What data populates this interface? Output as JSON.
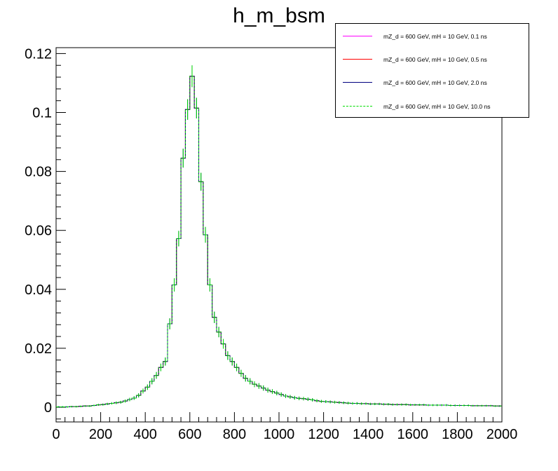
{
  "chart_data": {
    "type": "line",
    "title": "h_m_bsm",
    "xlabel": "",
    "ylabel": "",
    "xlim": [
      0,
      2000
    ],
    "ylim": [
      -0.005,
      0.122
    ],
    "x_ticks": [
      "0",
      "200",
      "400",
      "600",
      "800",
      "1000",
      "1200",
      "1400",
      "1600",
      "1800",
      "2000"
    ],
    "y_ticks": [
      "0",
      "0.02",
      "0.04",
      "0.06",
      "0.08",
      "0.1",
      "0.12"
    ],
    "grid": false,
    "legend_position": "top-right",
    "bin_width": 20,
    "bin_centers": [
      10,
      30,
      50,
      70,
      90,
      110,
      130,
      150,
      170,
      190,
      210,
      230,
      250,
      270,
      290,
      310,
      330,
      350,
      370,
      390,
      410,
      430,
      450,
      470,
      490,
      510,
      530,
      550,
      570,
      590,
      610,
      630,
      650,
      670,
      690,
      710,
      730,
      750,
      770,
      790,
      810,
      830,
      850,
      870,
      890,
      910,
      930,
      950,
      970,
      990,
      1010,
      1030,
      1050,
      1070,
      1090,
      1110,
      1130,
      1150,
      1170,
      1190,
      1210,
      1230,
      1250,
      1270,
      1290,
      1310,
      1330,
      1350,
      1370,
      1390,
      1410,
      1430,
      1450,
      1470,
      1490,
      1510,
      1530,
      1550,
      1570,
      1590,
      1610,
      1630,
      1650,
      1670,
      1690,
      1710,
      1730,
      1750,
      1770,
      1790,
      1810,
      1830,
      1850,
      1870,
      1890,
      1910,
      1930,
      1950,
      1970,
      1990
    ],
    "series": [
      {
        "name": "mZ_d = 600 GeV, mH = 10 GeV, 0.1 ns",
        "color": "#ff00ff",
        "dash": "solid",
        "values": [
          0.0001,
          0.0001,
          0.0001,
          0.0002,
          0.0002,
          0.0003,
          0.0004,
          0.0004,
          0.0006,
          0.0008,
          0.0009,
          0.0011,
          0.0013,
          0.0015,
          0.0017,
          0.0021,
          0.0026,
          0.0031,
          0.004,
          0.0055,
          0.0068,
          0.0088,
          0.0108,
          0.0135,
          0.0155,
          0.0283,
          0.0415,
          0.0572,
          0.0845,
          0.101,
          0.1123,
          0.1015,
          0.0765,
          0.0585,
          0.0415,
          0.0305,
          0.0255,
          0.0215,
          0.0175,
          0.0155,
          0.0135,
          0.0115,
          0.0098,
          0.0088,
          0.0078,
          0.0072,
          0.0065,
          0.0058,
          0.0053,
          0.0048,
          0.0043,
          0.0038,
          0.0035,
          0.0032,
          0.003,
          0.0029,
          0.0027,
          0.0025,
          0.0022,
          0.002,
          0.0019,
          0.0018,
          0.0017,
          0.0016,
          0.0015,
          0.0014,
          0.0013,
          0.0013,
          0.0012,
          0.0012,
          0.0011,
          0.0011,
          0.0011,
          0.001,
          0.001,
          0.0009,
          0.0009,
          0.0009,
          0.0009,
          0.0008,
          0.0008,
          0.0008,
          0.0008,
          0.0007,
          0.0007,
          0.0007,
          0.0007,
          0.0007,
          0.0006,
          0.0006,
          0.0006,
          0.0006,
          0.0006,
          0.0005,
          0.0005,
          0.0005,
          0.0005,
          0.0005,
          0.0004,
          0.0004
        ]
      },
      {
        "name": "mZ_d = 600 GeV, mH = 10 GeV, 0.5 ns",
        "color": "#ff0000",
        "dash": "solid",
        "values": [
          0.0001,
          0.0001,
          0.0001,
          0.0002,
          0.0002,
          0.0003,
          0.0004,
          0.0004,
          0.0006,
          0.0008,
          0.0009,
          0.0011,
          0.0013,
          0.0015,
          0.0017,
          0.0021,
          0.0026,
          0.0031,
          0.004,
          0.0055,
          0.0068,
          0.0088,
          0.0108,
          0.0135,
          0.0155,
          0.0283,
          0.0415,
          0.0572,
          0.0845,
          0.101,
          0.1123,
          0.1015,
          0.0765,
          0.0585,
          0.0415,
          0.0305,
          0.0255,
          0.0215,
          0.0175,
          0.0155,
          0.0135,
          0.0115,
          0.0098,
          0.0088,
          0.0078,
          0.0072,
          0.0065,
          0.0058,
          0.0053,
          0.0048,
          0.0043,
          0.0038,
          0.0035,
          0.0032,
          0.003,
          0.0029,
          0.0027,
          0.0025,
          0.0022,
          0.002,
          0.0019,
          0.0018,
          0.0017,
          0.0016,
          0.0015,
          0.0014,
          0.0013,
          0.0013,
          0.0012,
          0.0012,
          0.0011,
          0.0011,
          0.0011,
          0.001,
          0.001,
          0.0009,
          0.0009,
          0.0009,
          0.0009,
          0.0008,
          0.0008,
          0.0008,
          0.0008,
          0.0007,
          0.0007,
          0.0007,
          0.0007,
          0.0007,
          0.0006,
          0.0006,
          0.0006,
          0.0006,
          0.0006,
          0.0005,
          0.0005,
          0.0005,
          0.0005,
          0.0005,
          0.0004,
          0.0004
        ]
      },
      {
        "name": "mZ_d = 600 GeV, mH = 10 GeV, 2.0 ns",
        "color": "#000080",
        "dash": "solid",
        "values": [
          0.0001,
          0.0001,
          0.0001,
          0.0002,
          0.0002,
          0.0003,
          0.0004,
          0.0004,
          0.0006,
          0.0008,
          0.0009,
          0.0011,
          0.0013,
          0.0015,
          0.0017,
          0.0021,
          0.0026,
          0.0031,
          0.004,
          0.0055,
          0.0068,
          0.0088,
          0.0108,
          0.0135,
          0.0155,
          0.0283,
          0.0415,
          0.0572,
          0.0845,
          0.101,
          0.1123,
          0.1015,
          0.0765,
          0.0585,
          0.0415,
          0.0305,
          0.0255,
          0.0215,
          0.0175,
          0.0155,
          0.0135,
          0.0115,
          0.0098,
          0.0088,
          0.0078,
          0.0072,
          0.0065,
          0.0058,
          0.0053,
          0.0048,
          0.0043,
          0.0038,
          0.0035,
          0.0032,
          0.003,
          0.0029,
          0.0027,
          0.0025,
          0.0022,
          0.002,
          0.0019,
          0.0018,
          0.0017,
          0.0016,
          0.0015,
          0.0014,
          0.0013,
          0.0013,
          0.0012,
          0.0012,
          0.0011,
          0.0011,
          0.0011,
          0.001,
          0.001,
          0.0009,
          0.0009,
          0.0009,
          0.0009,
          0.0008,
          0.0008,
          0.0008,
          0.0008,
          0.0007,
          0.0007,
          0.0007,
          0.0007,
          0.0007,
          0.0006,
          0.0006,
          0.0006,
          0.0006,
          0.0006,
          0.0005,
          0.0005,
          0.0005,
          0.0005,
          0.0005,
          0.0004,
          0.0004
        ]
      },
      {
        "name": "mZ_d = 600 GeV, mH = 10 GeV, 10.0 ns",
        "color": "#00dd00",
        "dash": "dashed",
        "values": [
          0.0001,
          0.0001,
          0.0001,
          0.0002,
          0.0002,
          0.0003,
          0.0004,
          0.0004,
          0.0006,
          0.0008,
          0.0009,
          0.0011,
          0.0013,
          0.0015,
          0.0017,
          0.0021,
          0.0026,
          0.0031,
          0.004,
          0.0055,
          0.0068,
          0.0088,
          0.0108,
          0.0135,
          0.0155,
          0.0283,
          0.0415,
          0.0572,
          0.0845,
          0.101,
          0.1123,
          0.1015,
          0.0765,
          0.0585,
          0.0415,
          0.0305,
          0.0255,
          0.0215,
          0.0175,
          0.0155,
          0.0135,
          0.0115,
          0.0098,
          0.0088,
          0.0078,
          0.0072,
          0.0065,
          0.0058,
          0.0053,
          0.0048,
          0.0043,
          0.0038,
          0.0035,
          0.0032,
          0.003,
          0.0029,
          0.0027,
          0.0025,
          0.0022,
          0.002,
          0.0019,
          0.0018,
          0.0017,
          0.0016,
          0.0015,
          0.0014,
          0.0013,
          0.0013,
          0.0012,
          0.0012,
          0.0011,
          0.0011,
          0.0011,
          0.001,
          0.001,
          0.0009,
          0.0009,
          0.0009,
          0.0009,
          0.0008,
          0.0008,
          0.0008,
          0.0008,
          0.0007,
          0.0007,
          0.0007,
          0.0007,
          0.0007,
          0.0006,
          0.0006,
          0.0006,
          0.0006,
          0.0006,
          0.0005,
          0.0005,
          0.0005,
          0.0005,
          0.0005,
          0.0004,
          0.0004
        ]
      }
    ]
  }
}
